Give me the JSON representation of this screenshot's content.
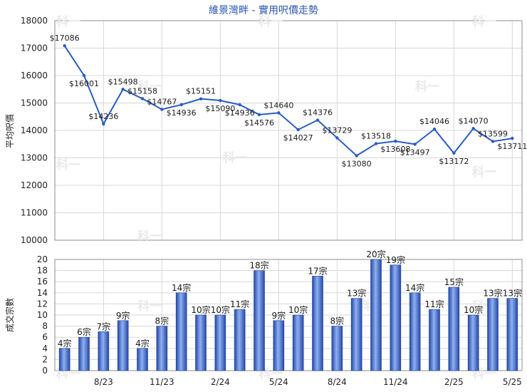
{
  "chart_data": [
    {
      "type": "line",
      "title": "維景灣畔 - 實用呎價走勢",
      "ylabel": "平均呎價",
      "ylim": [
        10000,
        18000
      ],
      "yticks": [
        10000,
        11000,
        12000,
        13000,
        14000,
        15000,
        16000,
        17000,
        18000
      ],
      "grid": true,
      "series": [
        {
          "values": [
            17086,
            16001,
            14236,
            15498,
            15158,
            14767,
            14936,
            15151,
            15090,
            14936,
            14576,
            14640,
            14027,
            14376,
            13729,
            13080,
            13518,
            13608,
            13497,
            14046,
            13172,
            14070,
            13599,
            13711
          ],
          "labels": [
            "$17086",
            "$16001",
            "$14236",
            "$15498",
            "$15158",
            "$14767",
            "$14936",
            "$15151",
            "$15090",
            "$14936",
            "$14576",
            "$14640",
            "$14027",
            "$14376",
            "$13729",
            "$13080",
            "$13518",
            "$13608",
            "$13497",
            "$14046",
            "$13172",
            "$14070",
            "$13599",
            "$13711"
          ],
          "color": "#2a5bc4"
        }
      ]
    },
    {
      "type": "bar",
      "ylabel": "成交宗數",
      "ylim": [
        0,
        20
      ],
      "yticks": [
        0,
        2,
        4,
        6,
        8,
        10,
        12,
        14,
        16,
        18,
        20
      ],
      "grid": true,
      "x_tick_labels": [
        "8/23",
        "11/23",
        "2/24",
        "5/24",
        "8/24",
        "11/24",
        "2/25",
        "5/25"
      ],
      "series": [
        {
          "values": [
            4,
            6,
            7,
            9,
            4,
            8,
            14,
            10,
            10,
            11,
            18,
            9,
            10,
            17,
            8,
            13,
            20,
            19,
            14,
            11,
            15,
            10,
            13,
            13
          ],
          "labels": [
            "4宗",
            "6宗",
            "7宗",
            "9宗",
            "4宗",
            "8宗",
            "14宗",
            "10宗",
            "10宗",
            "11宗",
            "18宗",
            "9宗",
            "10宗",
            "17宗",
            "8宗",
            "13宗",
            "20宗",
            "19宗",
            "14宗",
            "11宗",
            "15宗",
            "10宗",
            "13宗",
            "13宗"
          ],
          "color": "#3f66c9"
        }
      ]
    }
  ],
  "watermark": "科一"
}
